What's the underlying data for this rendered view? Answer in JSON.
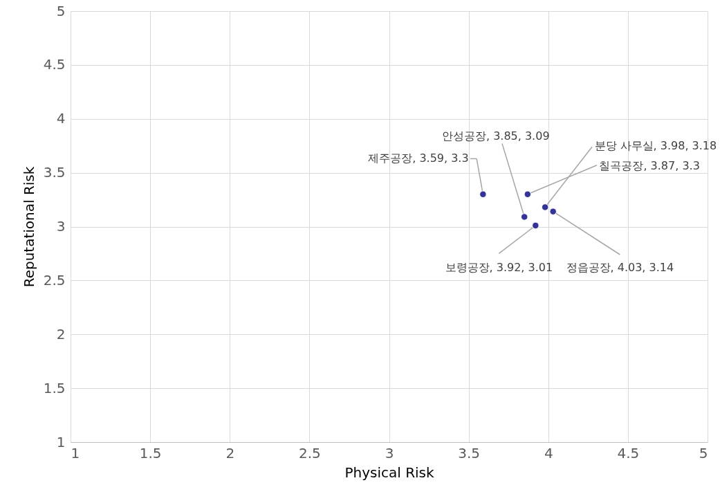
{
  "chart_data": {
    "type": "scatter",
    "xlabel": "Physical Risk",
    "ylabel": "Reputational Risk",
    "x": [
      3.59,
      3.85,
      3.98,
      3.87,
      3.92,
      4.03
    ],
    "series": [
      {
        "color": "#333399",
        "values": [
          3.3,
          3.09,
          3.18,
          3.3,
          3.01,
          3.14
        ]
      }
    ],
    "xlim": [
      1,
      5
    ],
    "ylim": [
      1,
      5
    ],
    "xticks": [
      1,
      1.5,
      2,
      2.5,
      3,
      3.5,
      4,
      4.5,
      5
    ],
    "yticks": [
      1,
      1.5,
      2,
      2.5,
      3,
      3.5,
      4,
      4.5,
      5
    ],
    "grid": true,
    "marker": "circle",
    "annotations": [
      {
        "text": "제주공장, 3.59, 3.3",
        "x": 3.59,
        "y": 3.3
      },
      {
        "text": "안성공장, 3.85, 3.09",
        "x": 3.85,
        "y": 3.09
      },
      {
        "text": "분당 사무실, 3.98, 3.18",
        "x": 3.98,
        "y": 3.18
      },
      {
        "text": "칠곡공장, 3.87, 3.3",
        "x": 3.87,
        "y": 3.3
      },
      {
        "text": "보령공장, 3.92, 3.01",
        "x": 3.92,
        "y": 3.01
      },
      {
        "text": "정읍공장, 4.03, 3.14",
        "x": 4.03,
        "y": 3.14
      }
    ]
  }
}
